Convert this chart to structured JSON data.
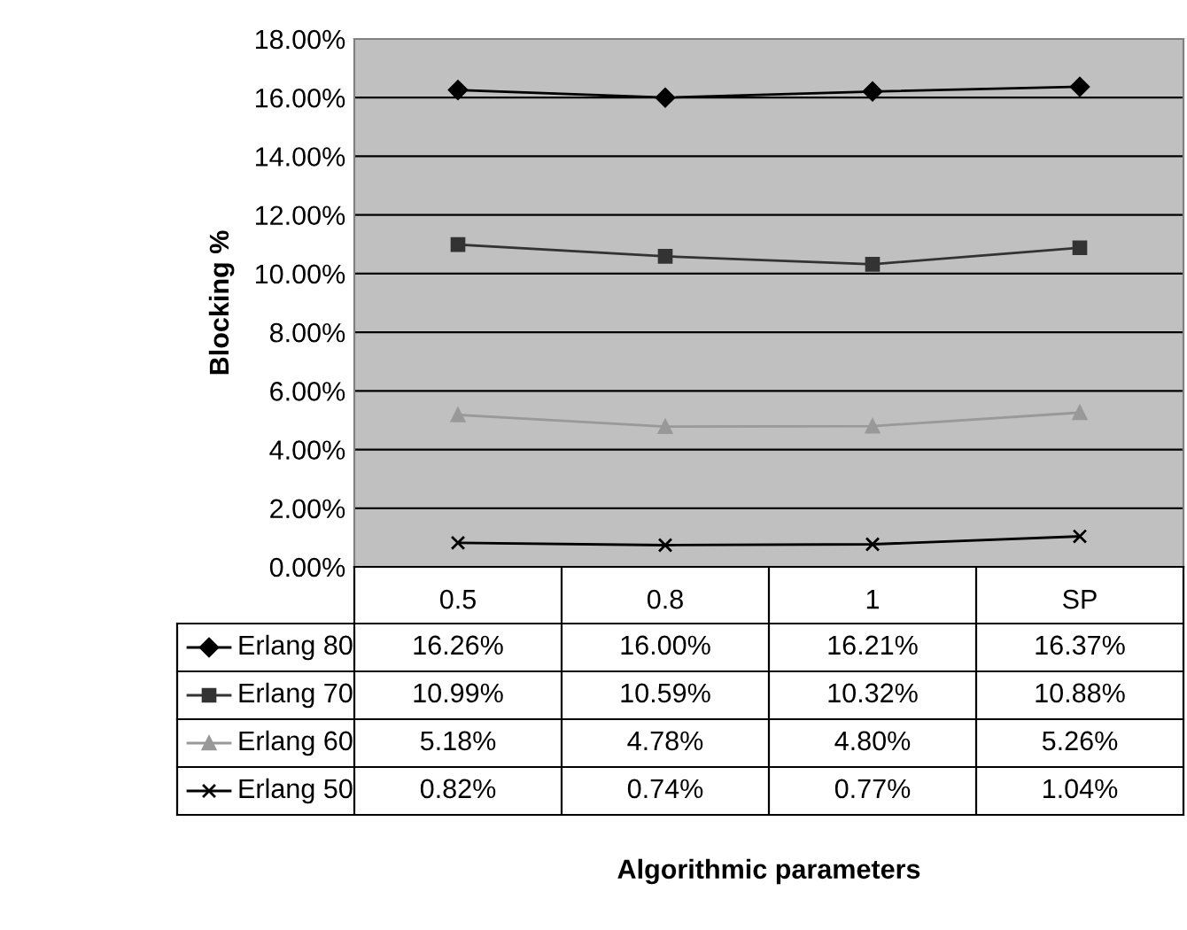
{
  "chart_data": {
    "type": "line",
    "annotations": [
      "Algorithmic parameters"
    ],
    "ylabel": "Blocking %",
    "categories": [
      "0.5",
      "0.8",
      "1",
      "SP"
    ],
    "series": [
      {
        "name": "Erlang 80",
        "color": "#000000",
        "marker": "diamond",
        "values": [
          16.26,
          16.0,
          16.21,
          16.37
        ],
        "value_labels": [
          "16.26%",
          "16.00%",
          "16.21%",
          "16.37%"
        ]
      },
      {
        "name": "Erlang 70",
        "color": "#333333",
        "marker": "square",
        "values": [
          10.99,
          10.59,
          10.32,
          10.88
        ],
        "value_labels": [
          "10.99%",
          "10.59%",
          "10.32%",
          "10.88%"
        ]
      },
      {
        "name": "Erlang 60",
        "color": "#999999",
        "marker": "triangle",
        "values": [
          5.18,
          4.78,
          4.8,
          5.26
        ],
        "value_labels": [
          "5.18%",
          "4.78%",
          "4.80%",
          "5.26%"
        ]
      },
      {
        "name": "Erlang 50",
        "color": "#000000",
        "marker": "cross",
        "values": [
          0.82,
          0.74,
          0.77,
          1.04
        ],
        "value_labels": [
          "0.82%",
          "0.74%",
          "0.77%",
          "1.04%"
        ]
      }
    ],
    "ylim": [
      0,
      18
    ],
    "yticks": [
      {
        "value": 0,
        "label": "0.00%"
      },
      {
        "value": 2,
        "label": "2.00%"
      },
      {
        "value": 4,
        "label": "4.00%"
      },
      {
        "value": 6,
        "label": "6.00%"
      },
      {
        "value": 8,
        "label": "8.00%"
      },
      {
        "value": 10,
        "label": "10.00%"
      },
      {
        "value": 12,
        "label": "12.00%"
      },
      {
        "value": 14,
        "label": "14.00%"
      },
      {
        "value": 16,
        "label": "16.00%"
      },
      {
        "value": 18,
        "label": "18.00%"
      }
    ],
    "grid": "y",
    "legend": "bottom left"
  }
}
